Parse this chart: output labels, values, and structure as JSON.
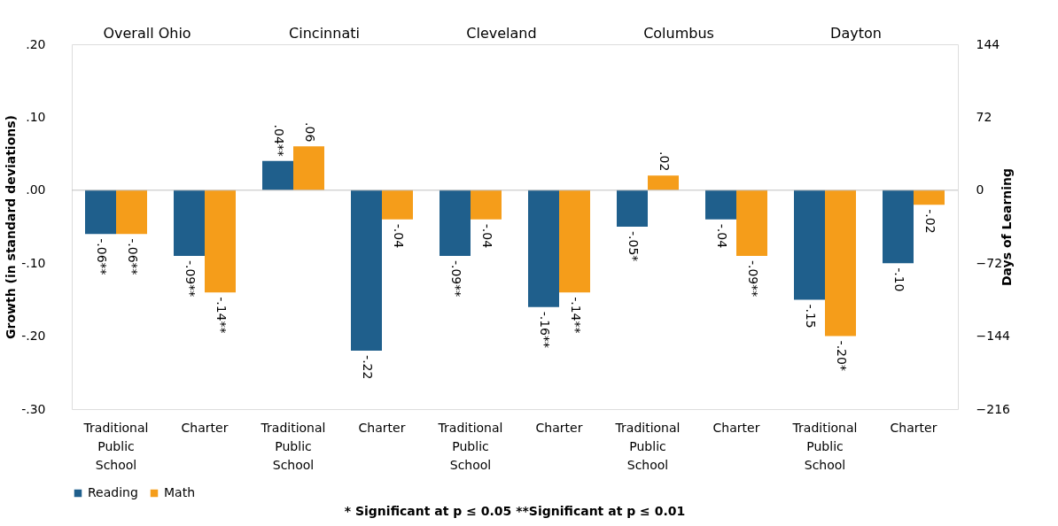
{
  "chart_data": {
    "type": "bar",
    "categories": [
      "Traditional Public School",
      "Charter",
      "Traditional Public School",
      "Charter",
      "Traditional Public School",
      "Charter",
      "Traditional Public School",
      "Charter",
      "Traditional Public School",
      "Charter"
    ],
    "series": [
      {
        "name": "Reading",
        "color": "#1f5f8c",
        "values": [
          -0.06,
          -0.09,
          0.04,
          -0.22,
          -0.09,
          -0.16,
          -0.05,
          -0.04,
          -0.15,
          -0.1
        ],
        "value_labels": [
          "-.06**",
          "-.09**",
          ".04**",
          "-.22",
          "-.09**",
          "-.16**",
          "-.05*",
          "-.04",
          "-.15",
          "-.10"
        ]
      },
      {
        "name": "Math",
        "color": "#f59d1a",
        "values": [
          -0.06,
          -0.14,
          0.06,
          -0.04,
          -0.04,
          -0.14,
          0.02,
          -0.09,
          -0.2,
          -0.02
        ],
        "value_labels": [
          "-.06**",
          "-.14**",
          ".06",
          "-.04",
          "-.04",
          "-.14**",
          ".02",
          "-.09**",
          "-.20*",
          "-.02"
        ]
      }
    ],
    "ylabel": "Growth (in standard deviations)",
    "y2label": "Days of Learning",
    "ylim": [
      -0.3,
      0.2
    ],
    "yticks": [
      {
        "value": 0.2,
        "label": ".20"
      },
      {
        "value": 0.1,
        "label": ".10"
      },
      {
        "value": 0.0,
        "label": ".00"
      },
      {
        "value": -0.1,
        "label": "-.10"
      },
      {
        "value": -0.2,
        "label": "-.20"
      },
      {
        "value": -0.3,
        "label": "-.30"
      }
    ],
    "y2lim": [
      -216,
      144
    ],
    "y2ticks": [
      144,
      72,
      0,
      -72,
      -144,
      -216
    ],
    "ref_lines": [
      {
        "axis": "y",
        "value": 0,
        "color": "#bfbfbf"
      }
    ],
    "annotations": [
      "Overall Ohio",
      "Cincinnati",
      "Cleveland",
      "Columbus",
      "Dayton",
      "* Significant at p ≤ 0.05  **Significant at p ≤ 0.01"
    ],
    "legend": "bottom",
    "grid": false
  }
}
